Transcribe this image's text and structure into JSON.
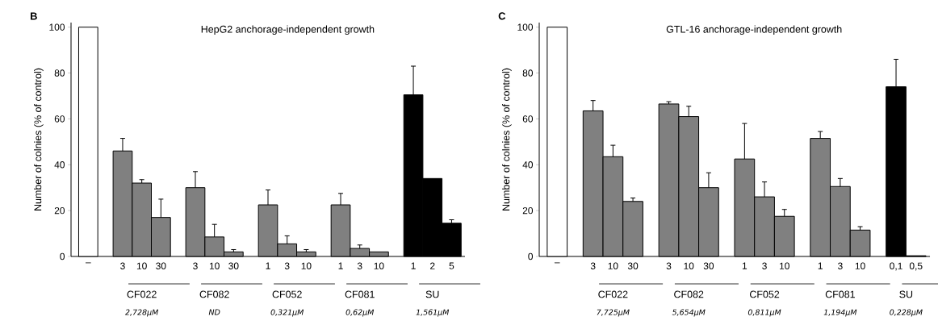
{
  "chart_data": [
    {
      "type": "bar",
      "title": "HepG2 anchorage-independent growth",
      "ylabel": "Number of colnies (% of control)",
      "categories": [
        "–",
        "3",
        "10",
        "30",
        "3",
        "10",
        "30",
        "1",
        "3",
        "10",
        "1",
        "3",
        "10",
        "1",
        "2",
        "5"
      ],
      "values": [
        100,
        46,
        32,
        17,
        30,
        8.5,
        2,
        22.5,
        5.5,
        2,
        22.5,
        3.5,
        2,
        70.5,
        34,
        14.5
      ],
      "errors": [
        null,
        [
          46,
          51.5
        ],
        [
          32,
          33.5
        ],
        [
          17,
          25
        ],
        [
          30,
          37
        ],
        [
          8.5,
          14
        ],
        [
          2,
          3
        ],
        [
          22.5,
          29
        ],
        [
          5.5,
          9
        ],
        [
          2,
          3
        ],
        [
          22.5,
          27.5
        ],
        [
          3.5,
          5
        ],
        null,
        [
          70.5,
          83
        ],
        null,
        [
          14.5,
          16
        ]
      ],
      "colors": [
        "#ffffff",
        "#808080",
        "#808080",
        "#808080",
        "#808080",
        "#808080",
        "#808080",
        "#808080",
        "#808080",
        "#808080",
        "#808080",
        "#808080",
        "#808080",
        "#000000",
        "#000000",
        "#000000"
      ],
      "ylim": [
        0,
        102
      ],
      "yticks": [
        0,
        20,
        40,
        60,
        80,
        100
      ],
      "annotations": [
        "B",
        "CF022",
        "CF082",
        "CF052",
        "CF081",
        "SU",
        "2,728μM",
        "ND",
        "0,321μM",
        "0,62μM",
        "1,561μM"
      ]
    },
    {
      "type": "bar",
      "title": "GTL-16 anchorage-independent growth",
      "ylabel": "Number of colnies (% of control)",
      "categories": [
        "–",
        "3",
        "10",
        "30",
        "3",
        "10",
        "30",
        "1",
        "3",
        "10",
        "1",
        "3",
        "10",
        "0,1",
        "0,5"
      ],
      "values": [
        100,
        63.5,
        43.5,
        24,
        66.5,
        61,
        30,
        42.5,
        26,
        17.5,
        51.5,
        30.5,
        11.5,
        74,
        0.3
      ],
      "errors": [
        null,
        [
          63.5,
          68
        ],
        [
          43.5,
          48.5
        ],
        [
          24,
          25.5
        ],
        [
          66.5,
          67.5
        ],
        [
          61,
          65.5
        ],
        [
          30,
          36.5
        ],
        [
          42.5,
          58
        ],
        [
          26,
          32.5
        ],
        [
          17.5,
          20.5
        ],
        [
          51.5,
          54.5
        ],
        [
          30.5,
          34
        ],
        [
          11.5,
          13
        ],
        [
          74,
          86
        ],
        null
      ],
      "colors": [
        "#ffffff",
        "#808080",
        "#808080",
        "#808080",
        "#808080",
        "#808080",
        "#808080",
        "#808080",
        "#808080",
        "#808080",
        "#808080",
        "#808080",
        "#808080",
        "#000000",
        "#000000"
      ],
      "ylim": [
        0,
        102
      ],
      "yticks": [
        0,
        20,
        40,
        60,
        80,
        100
      ],
      "annotations": [
        "C",
        "CF022",
        "CF082",
        "CF052",
        "CF081",
        "SU",
        "7,725μM",
        "5,654μM",
        "0,811μM",
        "1,194μM",
        "0,228μM"
      ]
    }
  ]
}
